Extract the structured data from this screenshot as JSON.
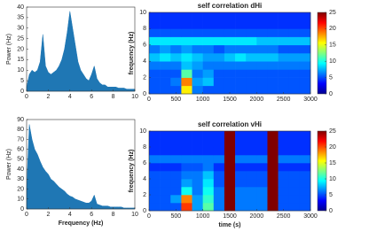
{
  "chart_data": [
    {
      "type": "area",
      "ylabel": "Power (Hz)",
      "color": "#1f77b4",
      "x": [
        0,
        0.25,
        0.5,
        0.75,
        1,
        1.25,
        1.5,
        1.75,
        2,
        2.25,
        2.5,
        2.75,
        3,
        3.25,
        3.5,
        3.75,
        4,
        4.25,
        4.5,
        4.75,
        5,
        5.25,
        5.5,
        5.75,
        6,
        6.25,
        6.5,
        6.75,
        7,
        7.25,
        7.5,
        7.75,
        8,
        8.25,
        8.5,
        8.75,
        9,
        9.25,
        9.5,
        9.75,
        10
      ],
      "values": [
        2,
        8,
        10,
        9,
        10,
        14,
        27,
        12,
        9,
        8,
        9,
        10,
        12,
        15,
        20,
        28,
        38,
        30,
        22,
        14,
        10,
        8,
        6,
        5,
        8,
        12,
        6,
        4,
        3,
        3,
        2,
        2,
        2,
        2,
        1.5,
        1.5,
        1.5,
        1,
        1,
        1,
        1
      ],
      "xlim": [
        0,
        10
      ],
      "ylim": [
        0,
        40
      ],
      "xticks": [
        0,
        2,
        4,
        6,
        8,
        10
      ],
      "yticks": [
        0,
        5,
        10,
        15,
        20,
        25,
        30,
        35,
        40
      ]
    },
    {
      "type": "heatmap",
      "title": "self correlation  dHi",
      "ylabel": "frequency (Hz)",
      "xlim": [
        0,
        3000
      ],
      "ylim": [
        0,
        10
      ],
      "xticks": [
        0,
        500,
        1000,
        1500,
        2000,
        2500,
        3000
      ],
      "yticks": [
        0,
        2,
        4,
        6,
        8,
        10
      ],
      "clim": [
        0,
        25
      ],
      "cticks": [
        0,
        5,
        10,
        15,
        20,
        25
      ],
      "values": [
        [
          3,
          3,
          3,
          15,
          4,
          3,
          3,
          3,
          3,
          3,
          3,
          3,
          3,
          3,
          3
        ],
        [
          3,
          3,
          4,
          18,
          5,
          6,
          3,
          3,
          3,
          3,
          3,
          3,
          3,
          3,
          3
        ],
        [
          3,
          3,
          3,
          10,
          4,
          5,
          3,
          3,
          3,
          3,
          3,
          3,
          3,
          3,
          3
        ],
        [
          4,
          4,
          4,
          6,
          5,
          4,
          4,
          4,
          4,
          4,
          4,
          4,
          4,
          4,
          4
        ],
        [
          6,
          7,
          6,
          7,
          6,
          5,
          5,
          6,
          7,
          6,
          6,
          6,
          5,
          5,
          5
        ],
        [
          4,
          5,
          4,
          5,
          4,
          4,
          3,
          4,
          4,
          4,
          4,
          4,
          3,
          3,
          3
        ],
        [
          7,
          7,
          7,
          7,
          7,
          7,
          7,
          7,
          7,
          7,
          6,
          6,
          6,
          6,
          6
        ],
        [
          3,
          3,
          3,
          3,
          3,
          3,
          3,
          3,
          3,
          3,
          3,
          3,
          3,
          3,
          3
        ],
        [
          2,
          2,
          2,
          2,
          2,
          2,
          2,
          2,
          2,
          2,
          2,
          2,
          2,
          2,
          2
        ],
        [
          2,
          2,
          2,
          2,
          2,
          2,
          2,
          2,
          2,
          2,
          2,
          2,
          2,
          2,
          2
        ]
      ]
    },
    {
      "type": "area",
      "xlabel": "Frequency (Hz)",
      "ylabel": "Power (Hz)",
      "color": "#1f77b4",
      "x": [
        0,
        0.25,
        0.5,
        0.75,
        1,
        1.25,
        1.5,
        1.75,
        2,
        2.25,
        2.5,
        2.75,
        3,
        3.25,
        3.5,
        3.75,
        4,
        4.25,
        4.5,
        4.75,
        5,
        5.25,
        5.5,
        5.75,
        6,
        6.25,
        6.5,
        6.75,
        7,
        7.25,
        7.5,
        7.75,
        8,
        8.25,
        8.5,
        8.75,
        9,
        9.25,
        9.5,
        9.75,
        10
      ],
      "values": [
        20,
        85,
        70,
        60,
        55,
        48,
        42,
        38,
        35,
        30,
        28,
        25,
        22,
        20,
        18,
        15,
        13,
        12,
        10,
        9,
        8,
        7,
        6,
        6,
        8,
        14,
        5,
        4,
        3,
        3,
        3,
        2,
        2,
        2,
        2,
        2,
        1,
        1,
        1,
        1,
        1
      ],
      "xlim": [
        0,
        10
      ],
      "ylim": [
        0,
        90
      ],
      "xticks": [
        0,
        2,
        4,
        6,
        8,
        10
      ],
      "yticks": [
        0,
        10,
        20,
        30,
        40,
        50,
        60,
        70,
        80,
        90
      ]
    },
    {
      "type": "heatmap",
      "title": "self correlation  vHi",
      "xlabel": "time (s)",
      "ylabel": "frequency (Hz)",
      "xlim": [
        0,
        3000
      ],
      "ylim": [
        0,
        10
      ],
      "xticks": [
        0,
        500,
        1000,
        1500,
        2000,
        2500,
        3000
      ],
      "yticks": [
        0,
        2,
        4,
        6,
        8,
        10
      ],
      "clim": [
        0,
        25
      ],
      "cticks": [
        0,
        5,
        10,
        15,
        20,
        25
      ],
      "values": [
        [
          3,
          3,
          3,
          20,
          5,
          10,
          4,
          25,
          4,
          4,
          4,
          25,
          3,
          3,
          3
        ],
        [
          3,
          3,
          5,
          18,
          5,
          9,
          4,
          25,
          4,
          4,
          4,
          25,
          3,
          3,
          3
        ],
        [
          3,
          3,
          3,
          8,
          4,
          8,
          4,
          25,
          4,
          4,
          4,
          25,
          3,
          3,
          3
        ],
        [
          3,
          3,
          3,
          5,
          4,
          7,
          3,
          25,
          3,
          3,
          3,
          25,
          3,
          3,
          3
        ],
        [
          3,
          3,
          3,
          4,
          4,
          6,
          3,
          25,
          3,
          3,
          3,
          25,
          3,
          3,
          3
        ],
        [
          2,
          2,
          2,
          3,
          3,
          4,
          2,
          25,
          2,
          2,
          2,
          25,
          2,
          2,
          2
        ],
        [
          4,
          4,
          4,
          4,
          4,
          4,
          4,
          25,
          4,
          4,
          4,
          25,
          4,
          4,
          4
        ],
        [
          2,
          2,
          2,
          2,
          2,
          2,
          2,
          25,
          2,
          2,
          2,
          25,
          2,
          2,
          2
        ],
        [
          2,
          2,
          2,
          2,
          2,
          2,
          2,
          25,
          2,
          2,
          2,
          25,
          2,
          2,
          2
        ],
        [
          2,
          2,
          2,
          2,
          2,
          2,
          2,
          25,
          2,
          2,
          2,
          25,
          2,
          2,
          2
        ]
      ]
    }
  ]
}
